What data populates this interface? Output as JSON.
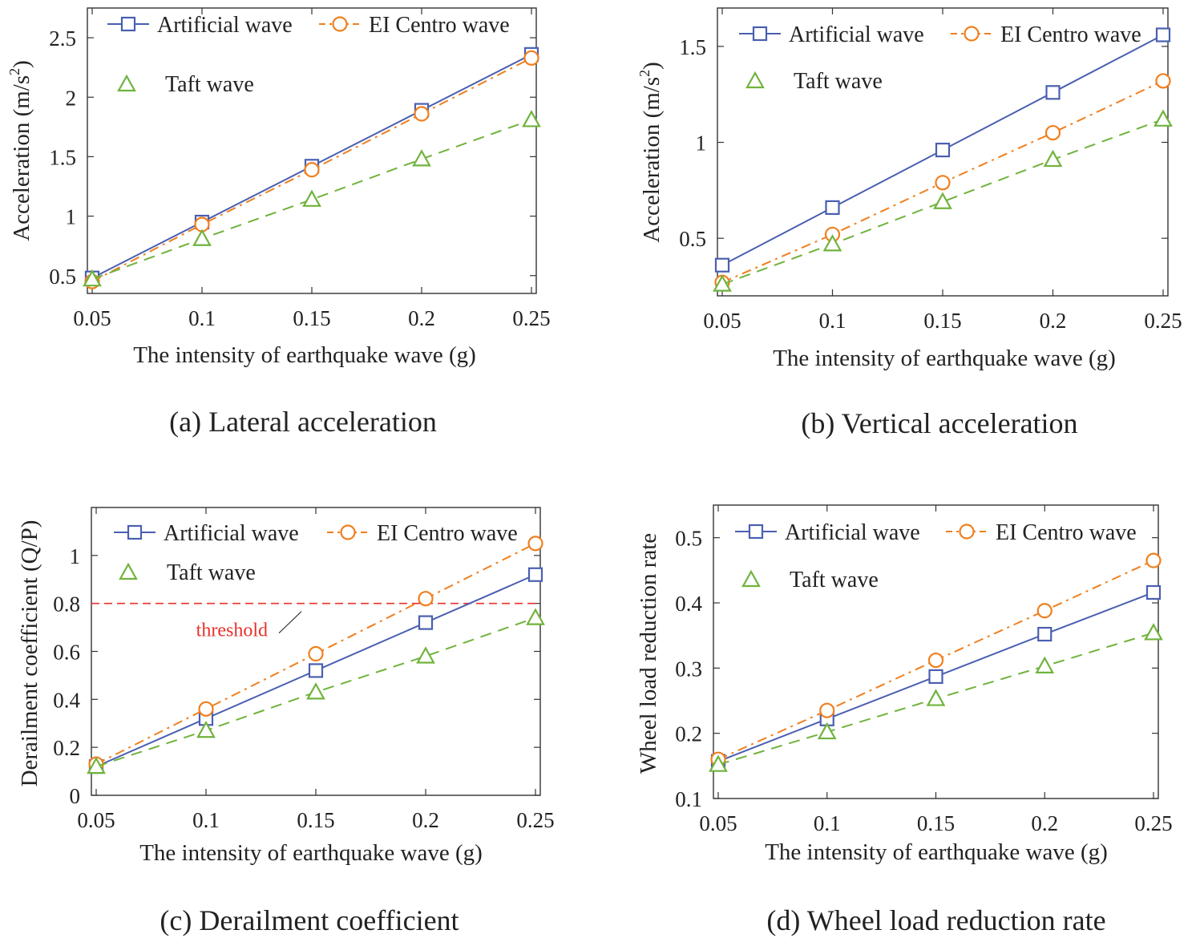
{
  "colors": {
    "artificial": "#4a5fb0",
    "elcentro": "#f07f1e",
    "taft": "#70b33c",
    "threshold": "#e8312a",
    "axis": "#333333"
  },
  "chart_data": [
    {
      "id": "a",
      "type": "line",
      "caption": "(a) Lateral acceleration",
      "xlabel": "The intensity of earthquake wave (g)",
      "ylabel": "Acceleration (m/s",
      "ylabel_sup": "2",
      "ylabel_close": ")",
      "x": [
        0.05,
        0.1,
        0.15,
        0.2,
        0.25
      ],
      "xticks": [
        "0.05",
        "0.1",
        "0.15",
        "0.2",
        "0.25"
      ],
      "xlim": [
        0.05,
        0.25
      ],
      "yticks": [
        0.5,
        1,
        1.5,
        2,
        2.5
      ],
      "ytick_labels": [
        "0.5",
        "1",
        "1.5",
        "2",
        "2.5"
      ],
      "ylim": [
        0.35,
        2.75
      ],
      "legend": {
        "placement": "top-left",
        "layout": "two-row"
      },
      "series": [
        {
          "key": "artificial",
          "name": "Artificial wave",
          "marker": "square",
          "dash": "solid",
          "values": [
            0.48,
            0.95,
            1.42,
            1.89,
            2.36
          ]
        },
        {
          "key": "elcentro",
          "name": "EI Centro wave",
          "marker": "circle",
          "dash": "dashdot",
          "values": [
            0.45,
            0.93,
            1.39,
            1.86,
            2.33
          ]
        },
        {
          "key": "taft",
          "name": "Taft wave",
          "marker": "triangle",
          "dash": "dashed",
          "values": [
            0.47,
            0.81,
            1.14,
            1.48,
            1.81
          ]
        }
      ]
    },
    {
      "id": "b",
      "type": "line",
      "caption": "(b) Vertical acceleration",
      "xlabel": "The intensity of earthquake wave (g)",
      "ylabel": "Acceleration (m/s",
      "ylabel_sup": "2",
      "ylabel_close": ")",
      "x": [
        0.05,
        0.1,
        0.15,
        0.2,
        0.25
      ],
      "xticks": [
        "0.05",
        "0.1",
        "0.15",
        "0.2",
        "0.25"
      ],
      "xlim": [
        0.05,
        0.25
      ],
      "yticks": [
        0.5,
        1,
        1.5
      ],
      "ytick_labels": [
        "0.5",
        "1",
        "1.5"
      ],
      "ylim": [
        0.2,
        1.7
      ],
      "legend": {
        "placement": "top-left",
        "layout": "two-row"
      },
      "series": [
        {
          "key": "artificial",
          "name": "Artificial wave",
          "marker": "square",
          "dash": "solid",
          "values": [
            0.36,
            0.66,
            0.96,
            1.26,
            1.56
          ]
        },
        {
          "key": "elcentro",
          "name": "EI Centro wave",
          "marker": "circle",
          "dash": "dashdot",
          "values": [
            0.27,
            0.52,
            0.79,
            1.05,
            1.32
          ]
        },
        {
          "key": "taft",
          "name": "Taft wave",
          "marker": "triangle",
          "dash": "dashed",
          "values": [
            0.26,
            0.47,
            0.69,
            0.91,
            1.12
          ]
        }
      ]
    },
    {
      "id": "c",
      "type": "line",
      "caption": "(c) Derailment coefficient",
      "xlabel": "The intensity of earthquake wave (g)",
      "ylabel": "Derailment coefficient (Q/P)",
      "x": [
        0.05,
        0.1,
        0.15,
        0.2,
        0.25
      ],
      "xticks": [
        "0.05",
        "0.1",
        "0.15",
        "0.2",
        "0.25"
      ],
      "xlim": [
        0.05,
        0.25
      ],
      "yticks": [
        0,
        0.2,
        0.4,
        0.6,
        0.8,
        1
      ],
      "ytick_labels": [
        "0",
        "0.2",
        "0.4",
        "0.6",
        "0.8",
        "1"
      ],
      "ylim": [
        0,
        1.2
      ],
      "legend": {
        "placement": "top-left",
        "layout": "two-row"
      },
      "threshold": {
        "value": 0.8,
        "label": "threshold"
      },
      "series": [
        {
          "key": "artificial",
          "name": "Artificial wave",
          "marker": "square",
          "dash": "solid",
          "values": [
            0.12,
            0.32,
            0.52,
            0.72,
            0.92
          ]
        },
        {
          "key": "elcentro",
          "name": "EI Centro wave",
          "marker": "circle",
          "dash": "dashdot",
          "values": [
            0.13,
            0.36,
            0.59,
            0.82,
            1.05
          ]
        },
        {
          "key": "taft",
          "name": "Taft wave",
          "marker": "triangle",
          "dash": "dashed",
          "values": [
            0.12,
            0.27,
            0.43,
            0.58,
            0.74
          ]
        }
      ]
    },
    {
      "id": "d",
      "type": "line",
      "caption": "(d) Wheel load reduction rate",
      "xlabel": "The intensity of earthquake wave (g)",
      "ylabel": "Wheel load reduction rate",
      "x": [
        0.05,
        0.1,
        0.15,
        0.2,
        0.25
      ],
      "xticks": [
        "0.05",
        "0.1",
        "0.15",
        "0.2",
        "0.25"
      ],
      "xlim": [
        0.05,
        0.25
      ],
      "yticks": [
        0.1,
        0.2,
        0.3,
        0.4,
        0.5
      ],
      "ytick_labels": [
        "0.1",
        "0.2",
        "0.3",
        "0.4",
        "0.5"
      ],
      "ylim": [
        0.1,
        0.55
      ],
      "legend": {
        "placement": "top-left",
        "layout": "two-row"
      },
      "series": [
        {
          "key": "artificial",
          "name": "Artificial wave",
          "marker": "square",
          "dash": "solid",
          "values": [
            0.157,
            0.222,
            0.287,
            0.352,
            0.416
          ]
        },
        {
          "key": "elcentro",
          "name": "EI Centro wave",
          "marker": "circle",
          "dash": "dashdot",
          "values": [
            0.16,
            0.235,
            0.312,
            0.388,
            0.465
          ]
        },
        {
          "key": "taft",
          "name": "Taft wave",
          "marker": "triangle",
          "dash": "dashed",
          "values": [
            0.152,
            0.202,
            0.253,
            0.303,
            0.354
          ]
        }
      ]
    }
  ]
}
